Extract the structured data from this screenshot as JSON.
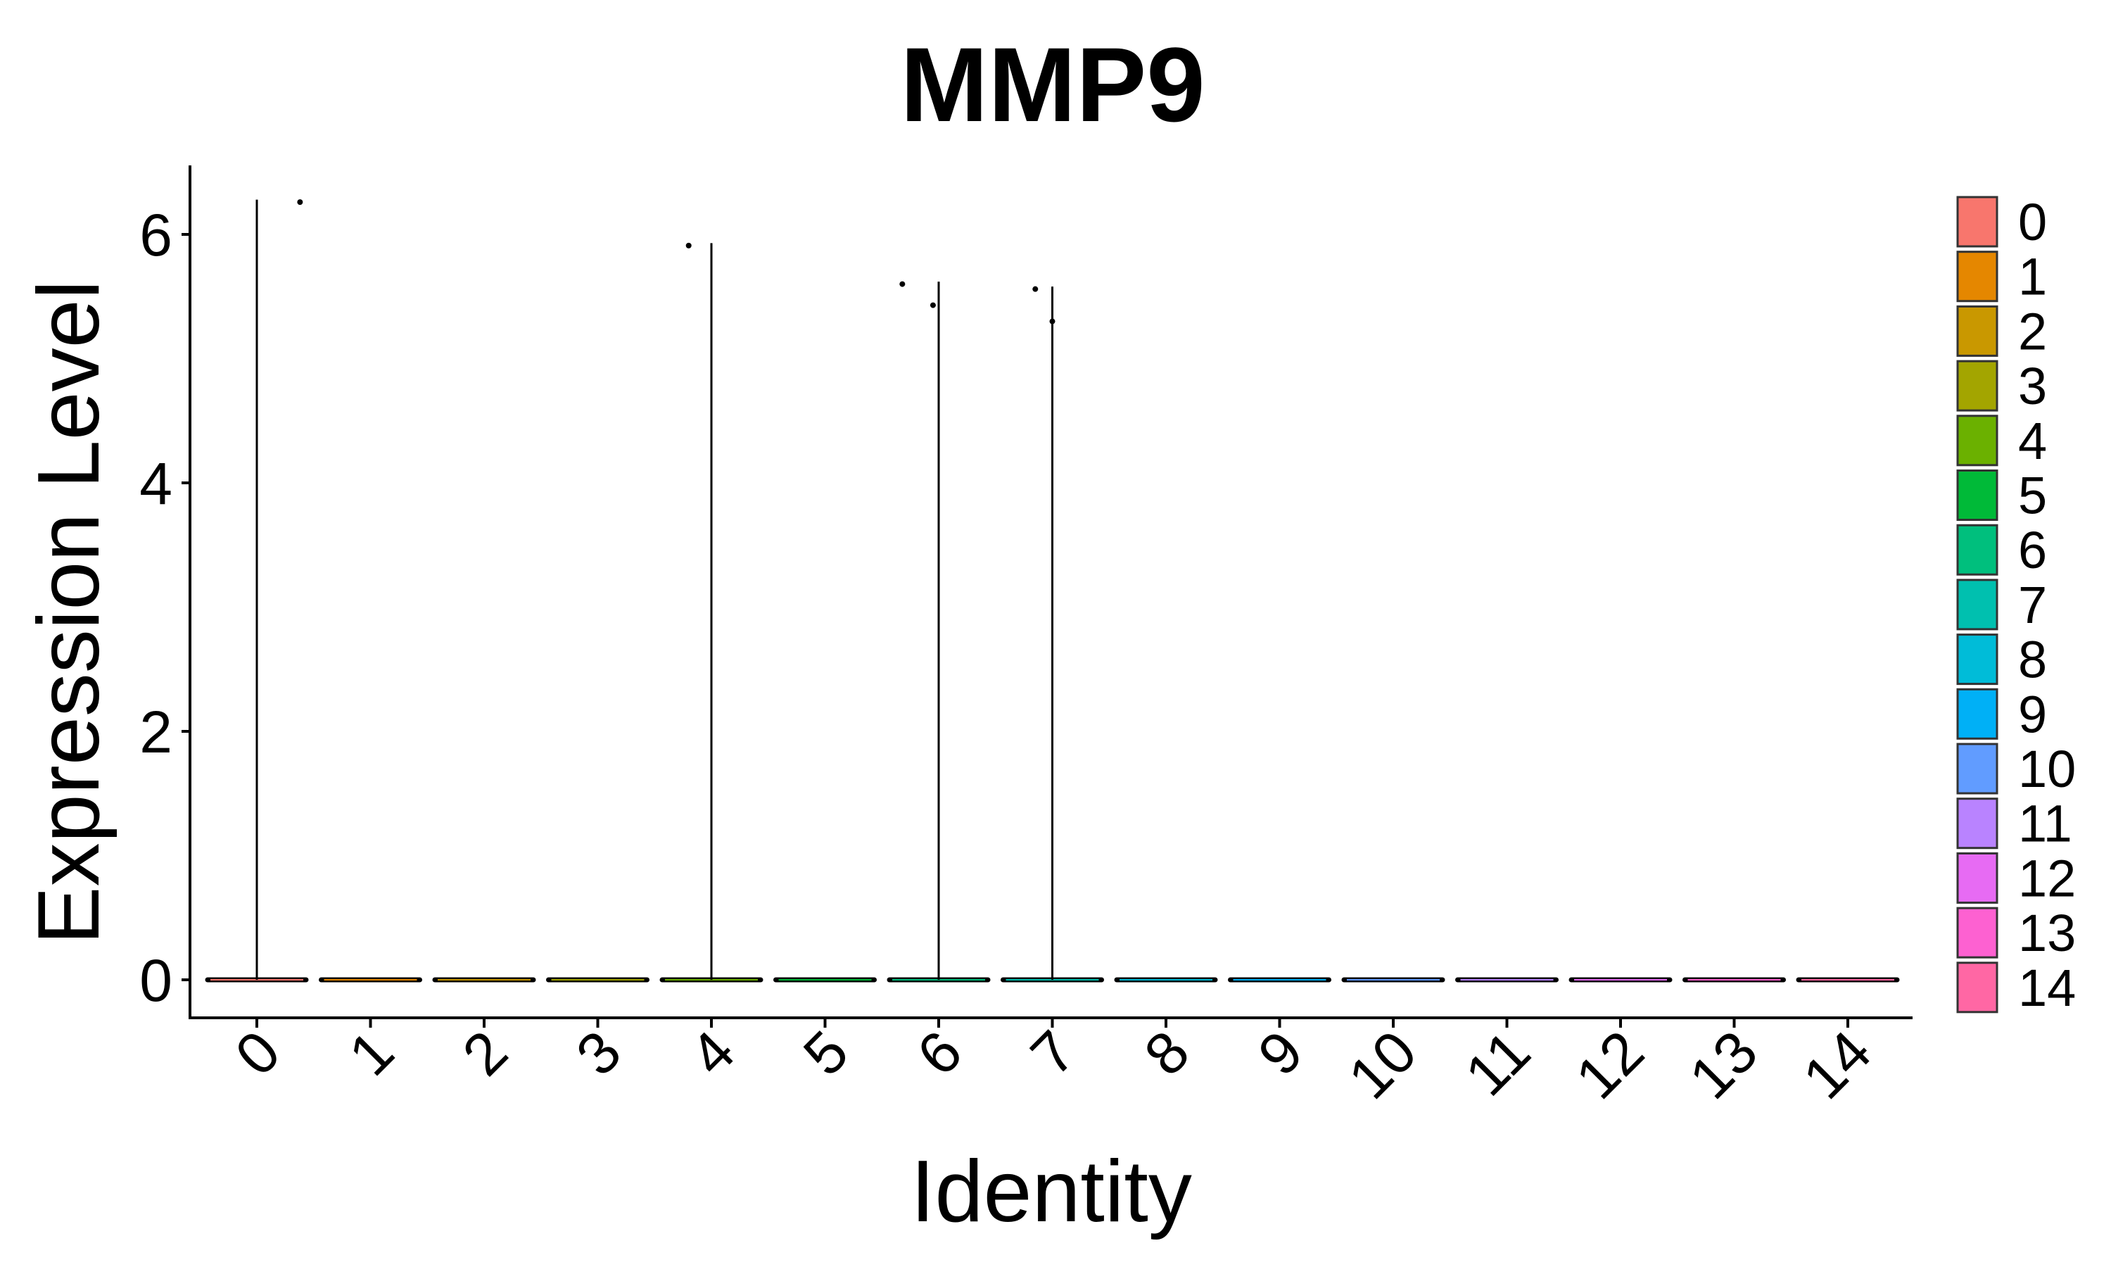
{
  "chart_data": {
    "type": "violin",
    "title": "MMP9",
    "xlabel": "Identity",
    "ylabel": "Expression Level",
    "ylim": [
      -0.3,
      6.6
    ],
    "yticks": [
      0,
      2,
      4,
      6
    ],
    "categories": [
      "0",
      "1",
      "2",
      "3",
      "4",
      "5",
      "6",
      "7",
      "8",
      "9",
      "10",
      "11",
      "12",
      "13",
      "14"
    ],
    "colors": [
      "#F8766D",
      "#E58700",
      "#C99800",
      "#A3A500",
      "#6BB100",
      "#00BA38",
      "#00BF7D",
      "#00C0AF",
      "#00BCD8",
      "#00B0F6",
      "#619CFF",
      "#B983FF",
      "#E76BF3",
      "#FD61D1",
      "#FF67A4"
    ],
    "violin_max": [
      6.28,
      0,
      0,
      0,
      5.93,
      0,
      5.62,
      5.58,
      0,
      0,
      0,
      0,
      0,
      0,
      0
    ],
    "points": [
      {
        "category": "0",
        "offset": 0.38,
        "y": 6.26
      },
      {
        "category": "4",
        "offset": -0.2,
        "y": 5.91
      },
      {
        "category": "6",
        "offset": -0.32,
        "y": 5.6
      },
      {
        "category": "6",
        "offset": -0.05,
        "y": 5.43
      },
      {
        "category": "7",
        "offset": -0.15,
        "y": 5.56
      },
      {
        "category": "7",
        "offset": 0.0,
        "y": 5.3
      }
    ],
    "legend": {
      "position": "right",
      "labels": [
        "0",
        "1",
        "2",
        "3",
        "4",
        "5",
        "6",
        "7",
        "8",
        "9",
        "10",
        "11",
        "12",
        "13",
        "14"
      ]
    },
    "grid": false
  }
}
